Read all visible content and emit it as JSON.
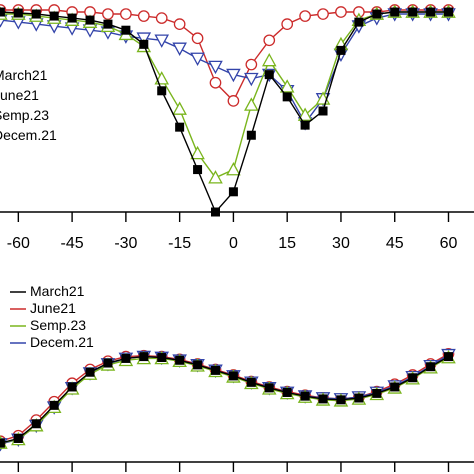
{
  "chart_data": [
    {
      "type": "line",
      "panel": "top",
      "x_ticks": [
        "-60",
        "-45",
        "-30",
        "-15",
        "0",
        "15",
        "30",
        "45",
        "60"
      ],
      "xlim": [
        -64,
        66
      ],
      "ylim": [
        0,
        1
      ],
      "legend": {
        "placement": "left",
        "entries": [
          "March21",
          "June21",
          "Semp.23",
          "Decem.21"
        ]
      },
      "series": [
        {
          "name": "March21",
          "marker": "square-filled",
          "color": "#000000",
          "points": [
            [
              -70,
              0.99
            ],
            [
              -65,
              0.99
            ],
            [
              -60,
              0.985
            ],
            [
              -55,
              0.98
            ],
            [
              -50,
              0.97
            ],
            [
              -45,
              0.96
            ],
            [
              -40,
              0.95
            ],
            [
              -35,
              0.93
            ],
            [
              -30,
              0.9
            ],
            [
              -25,
              0.83
            ],
            [
              -20,
              0.6
            ],
            [
              -15,
              0.42
            ],
            [
              -10,
              0.21
            ],
            [
              -5,
              0.0
            ],
            [
              0,
              0.1
            ],
            [
              5,
              0.38
            ],
            [
              10,
              0.68
            ],
            [
              15,
              0.57
            ],
            [
              20,
              0.43
            ],
            [
              25,
              0.5
            ],
            [
              30,
              0.8
            ],
            [
              35,
              0.94
            ],
            [
              40,
              0.98
            ],
            [
              45,
              0.99
            ],
            [
              50,
              0.99
            ],
            [
              55,
              0.99
            ],
            [
              60,
              0.99
            ]
          ]
        },
        {
          "name": "June21",
          "marker": "circle-open",
          "color": "#cc2b2b",
          "points": [
            [
              -70,
              0.99
            ],
            [
              -65,
              1.0
            ],
            [
              -60,
              1.0
            ],
            [
              -55,
              1.0
            ],
            [
              -50,
              1.0
            ],
            [
              -45,
              0.99
            ],
            [
              -40,
              0.99
            ],
            [
              -35,
              0.98
            ],
            [
              -30,
              0.98
            ],
            [
              -25,
              0.97
            ],
            [
              -20,
              0.96
            ],
            [
              -15,
              0.93
            ],
            [
              -10,
              0.86
            ],
            [
              -5,
              0.64
            ],
            [
              0,
              0.55
            ],
            [
              5,
              0.73
            ],
            [
              10,
              0.85
            ],
            [
              15,
              0.93
            ],
            [
              20,
              0.97
            ],
            [
              25,
              0.98
            ],
            [
              30,
              0.99
            ],
            [
              35,
              0.99
            ],
            [
              40,
              0.99
            ],
            [
              45,
              1.0
            ],
            [
              50,
              1.0
            ],
            [
              55,
              1.0
            ],
            [
              60,
              1.0
            ]
          ]
        },
        {
          "name": "Semp.23",
          "marker": "triangle-up-open",
          "color": "#7ab51d",
          "points": [
            [
              -70,
              0.98
            ],
            [
              -65,
              0.98
            ],
            [
              -60,
              0.98
            ],
            [
              -55,
              0.97
            ],
            [
              -50,
              0.96
            ],
            [
              -45,
              0.95
            ],
            [
              -40,
              0.94
            ],
            [
              -35,
              0.92
            ],
            [
              -30,
              0.88
            ],
            [
              -25,
              0.82
            ],
            [
              -20,
              0.66
            ],
            [
              -15,
              0.51
            ],
            [
              -10,
              0.29
            ],
            [
              -5,
              0.17
            ],
            [
              0,
              0.21
            ],
            [
              5,
              0.53
            ],
            [
              10,
              0.75
            ],
            [
              15,
              0.62
            ],
            [
              20,
              0.48
            ],
            [
              25,
              0.56
            ],
            [
              30,
              0.83
            ],
            [
              35,
              0.95
            ],
            [
              40,
              0.98
            ],
            [
              45,
              0.99
            ],
            [
              50,
              0.99
            ],
            [
              55,
              0.99
            ],
            [
              60,
              0.99
            ]
          ]
        },
        {
          "name": "Decem.21",
          "marker": "triangle-down-open",
          "color": "#3344aa",
          "points": [
            [
              -70,
              0.96
            ],
            [
              -65,
              0.95
            ],
            [
              -60,
              0.94
            ],
            [
              -55,
              0.93
            ],
            [
              -50,
              0.92
            ],
            [
              -45,
              0.91
            ],
            [
              -40,
              0.9
            ],
            [
              -35,
              0.89
            ],
            [
              -30,
              0.87
            ],
            [
              -25,
              0.86
            ],
            [
              -20,
              0.85
            ],
            [
              -15,
              0.81
            ],
            [
              -10,
              0.76
            ],
            [
              -5,
              0.72
            ],
            [
              0,
              0.68
            ],
            [
              5,
              0.66
            ],
            [
              10,
              0.68
            ],
            [
              15,
              0.6
            ],
            [
              20,
              0.44
            ],
            [
              25,
              0.56
            ],
            [
              30,
              0.78
            ],
            [
              35,
              0.92
            ],
            [
              40,
              0.96
            ],
            [
              45,
              0.98
            ],
            [
              50,
              0.98
            ],
            [
              55,
              0.98
            ],
            [
              60,
              0.98
            ]
          ]
        }
      ]
    },
    {
      "type": "line",
      "panel": "bottom",
      "x_ticks": [],
      "xlim": [
        -64,
        66
      ],
      "ylim": [
        0,
        1
      ],
      "legend": {
        "placement": "top-left",
        "entries": [
          "March21",
          "June21",
          "Semp.23",
          "Decem.21"
        ]
      },
      "series": [
        {
          "name": "March21",
          "marker": "square-filled",
          "color": "#000000",
          "points": [
            [
              -70,
              0.0
            ],
            [
              -65,
              0.01
            ],
            [
              -60,
              0.06
            ],
            [
              -55,
              0.22
            ],
            [
              -50,
              0.42
            ],
            [
              -45,
              0.62
            ],
            [
              -40,
              0.78
            ],
            [
              -35,
              0.88
            ],
            [
              -30,
              0.93
            ],
            [
              -25,
              0.95
            ],
            [
              -20,
              0.94
            ],
            [
              -15,
              0.91
            ],
            [
              -10,
              0.86
            ],
            [
              -5,
              0.8
            ],
            [
              0,
              0.74
            ],
            [
              5,
              0.67
            ],
            [
              10,
              0.61
            ],
            [
              15,
              0.56
            ],
            [
              20,
              0.52
            ],
            [
              25,
              0.49
            ],
            [
              30,
              0.48
            ],
            [
              35,
              0.5
            ],
            [
              40,
              0.55
            ],
            [
              45,
              0.62
            ],
            [
              50,
              0.72
            ],
            [
              55,
              0.84
            ],
            [
              60,
              0.95
            ]
          ]
        },
        {
          "name": "June21",
          "marker": "circle-open",
          "color": "#cc2b2b",
          "points": [
            [
              -70,
              0.02
            ],
            [
              -65,
              0.03
            ],
            [
              -60,
              0.09
            ],
            [
              -55,
              0.26
            ],
            [
              -50,
              0.46
            ],
            [
              -45,
              0.66
            ],
            [
              -40,
              0.81
            ],
            [
              -35,
              0.9
            ],
            [
              -30,
              0.95
            ],
            [
              -25,
              0.96
            ],
            [
              -20,
              0.95
            ],
            [
              -15,
              0.92
            ],
            [
              -10,
              0.87
            ],
            [
              -5,
              0.81
            ],
            [
              0,
              0.75
            ],
            [
              5,
              0.68
            ],
            [
              10,
              0.62
            ],
            [
              15,
              0.57
            ],
            [
              20,
              0.53
            ],
            [
              25,
              0.5
            ],
            [
              30,
              0.49
            ],
            [
              35,
              0.51
            ],
            [
              40,
              0.57
            ],
            [
              45,
              0.65
            ],
            [
              50,
              0.75
            ],
            [
              55,
              0.87
            ],
            [
              60,
              0.98
            ]
          ]
        },
        {
          "name": "Semp.23",
          "marker": "triangle-up-open",
          "color": "#7ab51d",
          "points": [
            [
              -70,
              0.0
            ],
            [
              -65,
              0.01
            ],
            [
              -60,
              0.05
            ],
            [
              -55,
              0.2
            ],
            [
              -50,
              0.4
            ],
            [
              -45,
              0.6
            ],
            [
              -40,
              0.76
            ],
            [
              -35,
              0.86
            ],
            [
              -30,
              0.91
            ],
            [
              -25,
              0.93
            ],
            [
              -20,
              0.93
            ],
            [
              -15,
              0.9
            ],
            [
              -10,
              0.85
            ],
            [
              -5,
              0.79
            ],
            [
              0,
              0.73
            ],
            [
              5,
              0.66
            ],
            [
              10,
              0.6
            ],
            [
              15,
              0.55
            ],
            [
              20,
              0.51
            ],
            [
              25,
              0.48
            ],
            [
              30,
              0.47
            ],
            [
              35,
              0.49
            ],
            [
              40,
              0.54
            ],
            [
              45,
              0.61
            ],
            [
              50,
              0.71
            ],
            [
              55,
              0.83
            ],
            [
              60,
              0.94
            ]
          ]
        },
        {
          "name": "Decem.21",
          "marker": "triangle-down-open",
          "color": "#3344aa",
          "points": [
            [
              -70,
              0.0
            ],
            [
              -65,
              0.0
            ],
            [
              -60,
              0.05
            ],
            [
              -55,
              0.2
            ],
            [
              -50,
              0.4
            ],
            [
              -45,
              0.61
            ],
            [
              -40,
              0.77
            ],
            [
              -35,
              0.87
            ],
            [
              -30,
              0.93
            ],
            [
              -25,
              0.95
            ],
            [
              -20,
              0.94
            ],
            [
              -15,
              0.91
            ],
            [
              -10,
              0.86
            ],
            [
              -5,
              0.8
            ],
            [
              0,
              0.74
            ],
            [
              5,
              0.67
            ],
            [
              10,
              0.61
            ],
            [
              15,
              0.56
            ],
            [
              20,
              0.52
            ],
            [
              25,
              0.5
            ],
            [
              30,
              0.49
            ],
            [
              35,
              0.51
            ],
            [
              40,
              0.56
            ],
            [
              45,
              0.63
            ],
            [
              50,
              0.73
            ],
            [
              55,
              0.85
            ],
            [
              60,
              0.97
            ]
          ]
        }
      ]
    }
  ]
}
